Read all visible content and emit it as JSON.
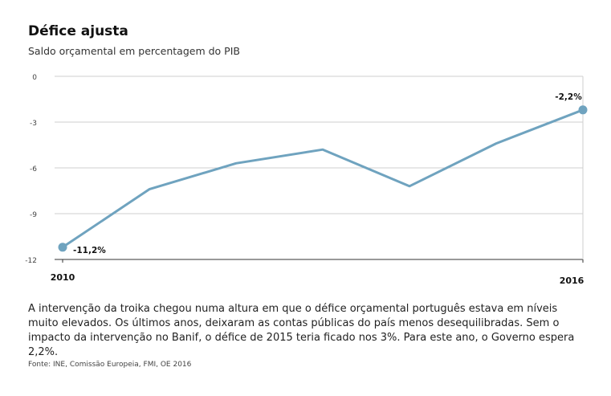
{
  "header": {
    "title": "Défice ajusta",
    "subtitle": "Saldo orçamental em percentagem do PIB"
  },
  "chart_data": {
    "type": "line",
    "x": [
      2010,
      2011,
      2012,
      2013,
      2014,
      2015,
      2016
    ],
    "x_tick_labels": [
      "2010",
      "2016"
    ],
    "series": [
      {
        "values": [
          -11.2,
          -7.4,
          -5.7,
          -4.8,
          -7.2,
          -4.4,
          -2.2
        ]
      }
    ],
    "yticks": [
      0,
      -3,
      -6,
      -9,
      -12
    ],
    "ytick_labels": [
      "0",
      "-3",
      "-6",
      "-9",
      "-12"
    ],
    "ylim": [
      -12,
      0
    ],
    "grid": true,
    "annotations": [
      {
        "x": 2010,
        "y": -11.2,
        "text": "-11,2%"
      },
      {
        "x": 2016,
        "y": -2.2,
        "text": "-2,2%"
      }
    ],
    "colors": {
      "line": "#6fa3bf",
      "grid": "#cfcfcf",
      "axis": "#333333"
    }
  },
  "footer": {
    "description": "A intervenção da troika chegou numa altura em que o défice orçamental português estava em níveis muito elevados. Os últimos anos, deixaram as contas públicas do país menos desequilibradas. Sem o impacto da intervenção no Banif, o défice de 2015 teria ficado nos 3%. Para este ano, o Governo espera 2,2%.",
    "source": "Fonte: INE, Comissão Europeia, FMI, OE 2016"
  }
}
